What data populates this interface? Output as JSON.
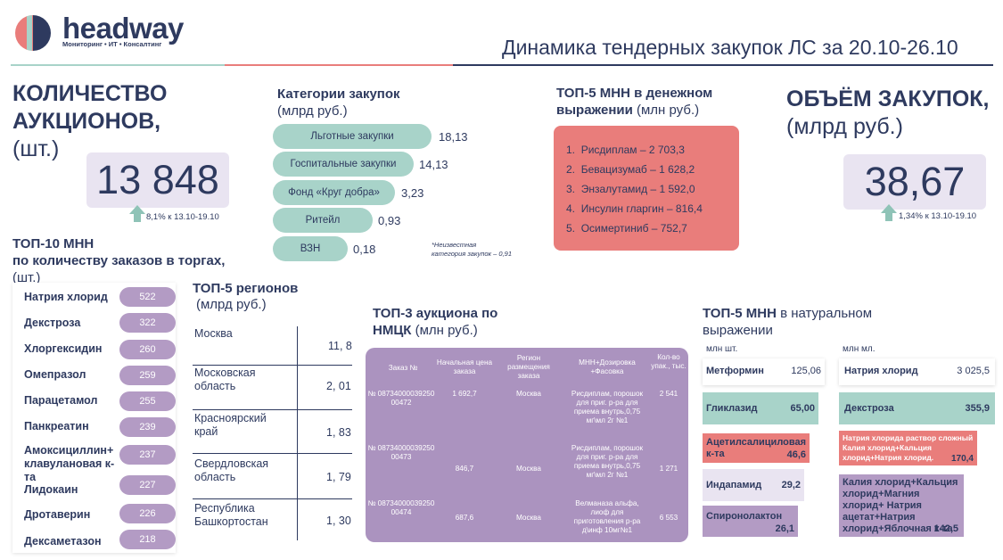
{
  "brand": {
    "name": "headway",
    "tagline": "Мониторинг • ИТ • Консалтинг",
    "colors": {
      "navy": "#2e3a5f",
      "red": "#e97d7b",
      "teal": "#a8d3c9",
      "lavender": "#e9e4f1",
      "purple": "#b39bc4"
    }
  },
  "header": {
    "title": "Динамика тендерных закупок ЛС за 20.10-26.10"
  },
  "auctions_count": {
    "title_line1": "КОЛИЧЕСТВО",
    "title_line2": "АУКЦИОНОВ,",
    "unit": "(шт.)",
    "value": "13 848",
    "change": "8,1% к 13.10-19.10"
  },
  "volume": {
    "title_line1": "ОБЪЁМ ЗАКУПОК,",
    "unit": "(млрд руб.)",
    "value": "38,67",
    "change": "1,34% к 13.10-19.10"
  },
  "categories": {
    "title": "Категории закупок",
    "unit": "(млрд руб.)",
    "items": [
      {
        "label": "Льготные закупки",
        "value": "18,13"
      },
      {
        "label": "Госпитальные закупки",
        "value": "14,13"
      },
      {
        "label": "Фонд «Круг добра»",
        "value": "3,23"
      },
      {
        "label": "Ритейл",
        "value": "0,93"
      },
      {
        "label": "ВЗН",
        "value": "0,18"
      }
    ],
    "note_line1": "*Неизвестная",
    "note_line2": "категория закупок – 0,91"
  },
  "top5_money": {
    "title_line1": "ТОП-5 МНН в денежном",
    "title_line2_bold": "выражении",
    "title_line2_unit": "(млн руб.)",
    "items": [
      {
        "num": "1.",
        "text": "Рисдиплам – 2 703,3"
      },
      {
        "num": "2.",
        "text": "Бевацизумаб – 1 628,2"
      },
      {
        "num": "3.",
        "text": "Энзалутамид – 1 592,0"
      },
      {
        "num": "4.",
        "text": "Инсулин гларгин – 816,4"
      },
      {
        "num": "5.",
        "text": "Осимертиниб – 752,7"
      }
    ]
  },
  "top10": {
    "title_line1": "ТОП-10 МНН",
    "title_line2": "по количеству заказов в торгах,",
    "unit": "(шт.)",
    "items": [
      {
        "name": "Натрия хлорид",
        "value": "522"
      },
      {
        "name": "Декстроза",
        "value": "322"
      },
      {
        "name": "Хлоргексидин",
        "value": "260"
      },
      {
        "name": "Омепразол",
        "value": "259"
      },
      {
        "name": "Парацетамол",
        "value": "255"
      },
      {
        "name": "Панкреатин",
        "value": "239"
      },
      {
        "name": "Амоксициллин+ клавулановая к-та",
        "value": "237"
      },
      {
        "name": "Лидокаин",
        "value": "227"
      },
      {
        "name": "Дротаверин",
        "value": "226"
      },
      {
        "name": "Дексаметазон",
        "value": "218"
      }
    ]
  },
  "regions": {
    "title": "ТОП-5 регионов",
    "unit": "(млрд руб.)",
    "items": [
      {
        "name": "Москва",
        "value": "11, 8"
      },
      {
        "name": "Московская область",
        "value": "2, 01"
      },
      {
        "name": "Красноярский край",
        "value": "1, 83"
      },
      {
        "name": "Свердловская область",
        "value": "1, 79"
      },
      {
        "name": "Республика Башкортостан",
        "value": "1, 30"
      }
    ]
  },
  "auctions": {
    "title_line1": "ТОП-3 аукциона по",
    "title_line2_bold": "НМЦК",
    "title_line2_unit": "(млн руб.)",
    "headers": [
      "Заказ №",
      "Начальная цена заказа",
      "Регион размещения заказа",
      "МНН+Дозировка +Фасовка",
      "Кол-во упак., тыс."
    ],
    "rows": [
      {
        "order": "№ 08734000039250 00472",
        "price": "1 692,7",
        "region": "Москва",
        "mnn": "Рисдиплам, порошок для приг. р-ра для приема внутрь,0,75 мг\\мл 2г №1",
        "qty": "2 541"
      },
      {
        "order": "№ 08734000039250 00473",
        "price": "846,7",
        "region": "Москва",
        "mnn": "Рисдиплам, порошок для приг. р-ра для приема внутрь,0,75 мг\\мл 2г №1",
        "qty": "1 271"
      },
      {
        "order": "№ 08734000039250 00474",
        "price": "687,6",
        "region": "Москва",
        "mnn": "Велманаза альфа, лиоф для приготовления р-ра д\\инф 10мг№1",
        "qty": "6 553"
      }
    ]
  },
  "natural": {
    "title_line1_bold": "ТОП-5 МНН",
    "title_line1_rest": "в натуральном",
    "title_line2": "выражении",
    "left_unit": "млн шт.",
    "right_unit": "млн мл.",
    "left": [
      {
        "name": "Метформин",
        "value": "125,06"
      },
      {
        "name": "Гликлазид",
        "value": "65,00"
      },
      {
        "name": "Ацетилсалициловая к-та",
        "value": "46,6"
      },
      {
        "name": "Индапамид",
        "value": "29,2"
      },
      {
        "name": "Спиронолактон",
        "value": "26,1"
      }
    ],
    "right": [
      {
        "name": "Натрия хлорид",
        "value": "3 025,5"
      },
      {
        "name": "Декстроза",
        "value": "355,9"
      },
      {
        "name": "Натрия хлорида раствор сложный Калия хлорид+Кальция хлорид+Натрия хлорид.",
        "value": "170,4"
      },
      {
        "name": "Калия хлорид+Кальция хлорид+Магния хлорид+ Натрия ацетат+Натрия хлорид+Яблочная к-та",
        "value": "142,5"
      }
    ]
  }
}
